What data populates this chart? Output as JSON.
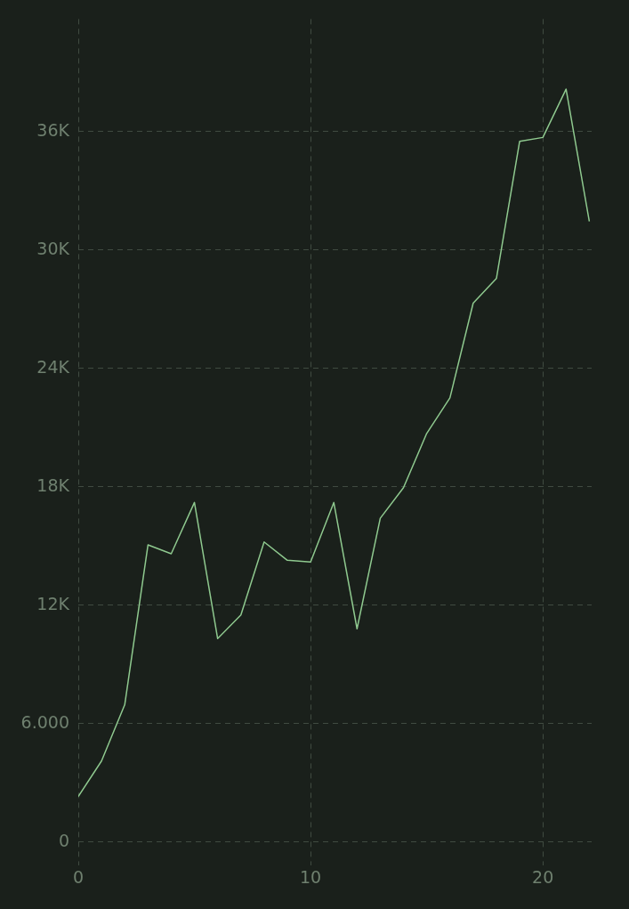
{
  "chart_data": {
    "type": "line",
    "x": [
      0,
      1,
      2,
      3,
      4,
      5,
      6,
      7,
      8,
      9,
      10,
      11,
      12,
      13,
      14,
      15,
      16,
      17,
      18,
      19,
      20,
      21,
      22
    ],
    "series": [
      {
        "color": "#8fc98f",
        "values": [
          2300,
          4100,
          6950,
          15050,
          14600,
          17200,
          10300,
          11500,
          15200,
          14270,
          14180,
          17200,
          10800,
          16400,
          17950,
          20700,
          22500,
          27300,
          28550,
          35500,
          35700,
          38150,
          31450
        ]
      }
    ],
    "xlim": [
      0,
      22.1
    ],
    "xticks": [
      0,
      10,
      20
    ],
    "ylim": [
      -1200,
      41700
    ],
    "yticks": [
      0,
      {
        "value": 6000,
        "label": "6.000"
      },
      {
        "value": 12000,
        "label": "12K"
      },
      {
        "value": 18000,
        "label": "18K"
      },
      {
        "value": 24000,
        "label": "24K"
      },
      {
        "value": 30000,
        "label": "30K"
      },
      {
        "value": 36000,
        "label": "36K"
      }
    ],
    "grid": true,
    "legend": false,
    "marker": "none",
    "line_style": "solid"
  }
}
